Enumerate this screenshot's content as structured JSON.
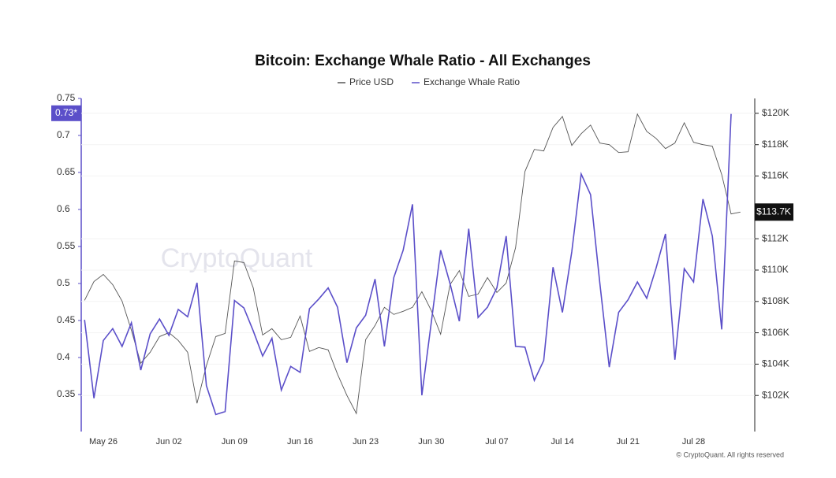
{
  "chart_data": {
    "type": "line",
    "title": "Bitcoin: Exchange Whale Ratio - All Exchanges",
    "watermark": "CryptoQuant",
    "footer": "© CryptoQuant. All rights reserved",
    "categories": [
      null,
      null,
      "May 26",
      null,
      null,
      null,
      null,
      null,
      null,
      "Jun 02",
      null,
      null,
      null,
      null,
      null,
      null,
      "Jun 09",
      null,
      null,
      null,
      null,
      null,
      null,
      "Jun 16",
      null,
      null,
      null,
      null,
      null,
      null,
      "Jun 23",
      null,
      null,
      null,
      null,
      null,
      null,
      "Jun 30",
      null,
      null,
      null,
      null,
      null,
      null,
      "Jul 07",
      null,
      null,
      null,
      null,
      null,
      null,
      "Jul 14",
      null,
      null,
      null,
      null,
      null,
      null,
      "Jul 21",
      null,
      null,
      null,
      null,
      null,
      null,
      "Jul 28",
      null,
      null,
      null,
      null,
      null
    ],
    "series": [
      {
        "name": "Price USD",
        "color": "#555555",
        "axis": "y2",
        "values": [
          108070,
          109270,
          109720,
          109070,
          108020,
          106160,
          104060,
          104760,
          105760,
          106010,
          105510,
          104760,
          101500,
          103910,
          105760,
          105960,
          110580,
          110480,
          108870,
          105860,
          106260,
          105560,
          105710,
          107070,
          104810,
          105060,
          104910,
          103350,
          102000,
          100850,
          105560,
          106460,
          107620,
          107170,
          107370,
          107620,
          108620,
          107420,
          105910,
          109070,
          109970,
          108320,
          108470,
          109520,
          108570,
          109170,
          111430,
          116290,
          117700,
          117600,
          119100,
          119800,
          117950,
          118700,
          119250,
          118100,
          118000,
          117500,
          117550,
          119950,
          118850,
          118400,
          117750,
          118100,
          119400,
          118150,
          118000,
          117900,
          116090,
          113580,
          113700
        ]
      },
      {
        "name": "Exchange Whale Ratio",
        "color": "#5b4fc9",
        "values": [
          0.451,
          0.345,
          0.423,
          0.439,
          0.415,
          0.447,
          0.383,
          0.432,
          0.452,
          0.43,
          0.465,
          0.455,
          0.501,
          0.362,
          0.323,
          0.327,
          0.477,
          0.467,
          0.436,
          0.402,
          0.426,
          0.356,
          0.388,
          0.38,
          0.466,
          0.479,
          0.494,
          0.468,
          0.393,
          0.44,
          0.457,
          0.506,
          0.415,
          0.508,
          0.545,
          0.607,
          0.349,
          0.447,
          0.545,
          0.5,
          0.449,
          0.574,
          0.454,
          0.468,
          0.494,
          0.564,
          0.415,
          0.414,
          0.369,
          0.396,
          0.522,
          0.461,
          0.543,
          0.648,
          0.62,
          0.5,
          0.387,
          0.461,
          0.478,
          0.502,
          0.48,
          0.521,
          0.567,
          0.397,
          0.52,
          0.502,
          0.614,
          0.564,
          0.438,
          0.729,
          null
        ]
      }
    ],
    "ylim": [
      0.3,
      0.75
    ],
    "yticks": [
      0.35,
      0.4,
      0.45,
      0.5,
      0.55,
      0.6,
      0.65,
      0.7,
      0.75
    ],
    "y2lim": [
      99700,
      120950
    ],
    "y2ticks": [
      {
        "value": 102000,
        "label": "$102K"
      },
      {
        "value": 104000,
        "label": "$104K"
      },
      {
        "value": 106000,
        "label": "$106K"
      },
      {
        "value": 108000,
        "label": "$108K"
      },
      {
        "value": 110000,
        "label": "$110K"
      },
      {
        "value": 112000,
        "label": "$112K"
      },
      {
        "value": 116000,
        "label": "$116K"
      },
      {
        "value": 118000,
        "label": "$118K"
      },
      {
        "value": 120000,
        "label": "$120K"
      }
    ],
    "y_last_label": {
      "value": 0.73,
      "label": "0.73*"
    },
    "y2_last_label": {
      "value": 113700,
      "label": "$113.7K"
    }
  }
}
